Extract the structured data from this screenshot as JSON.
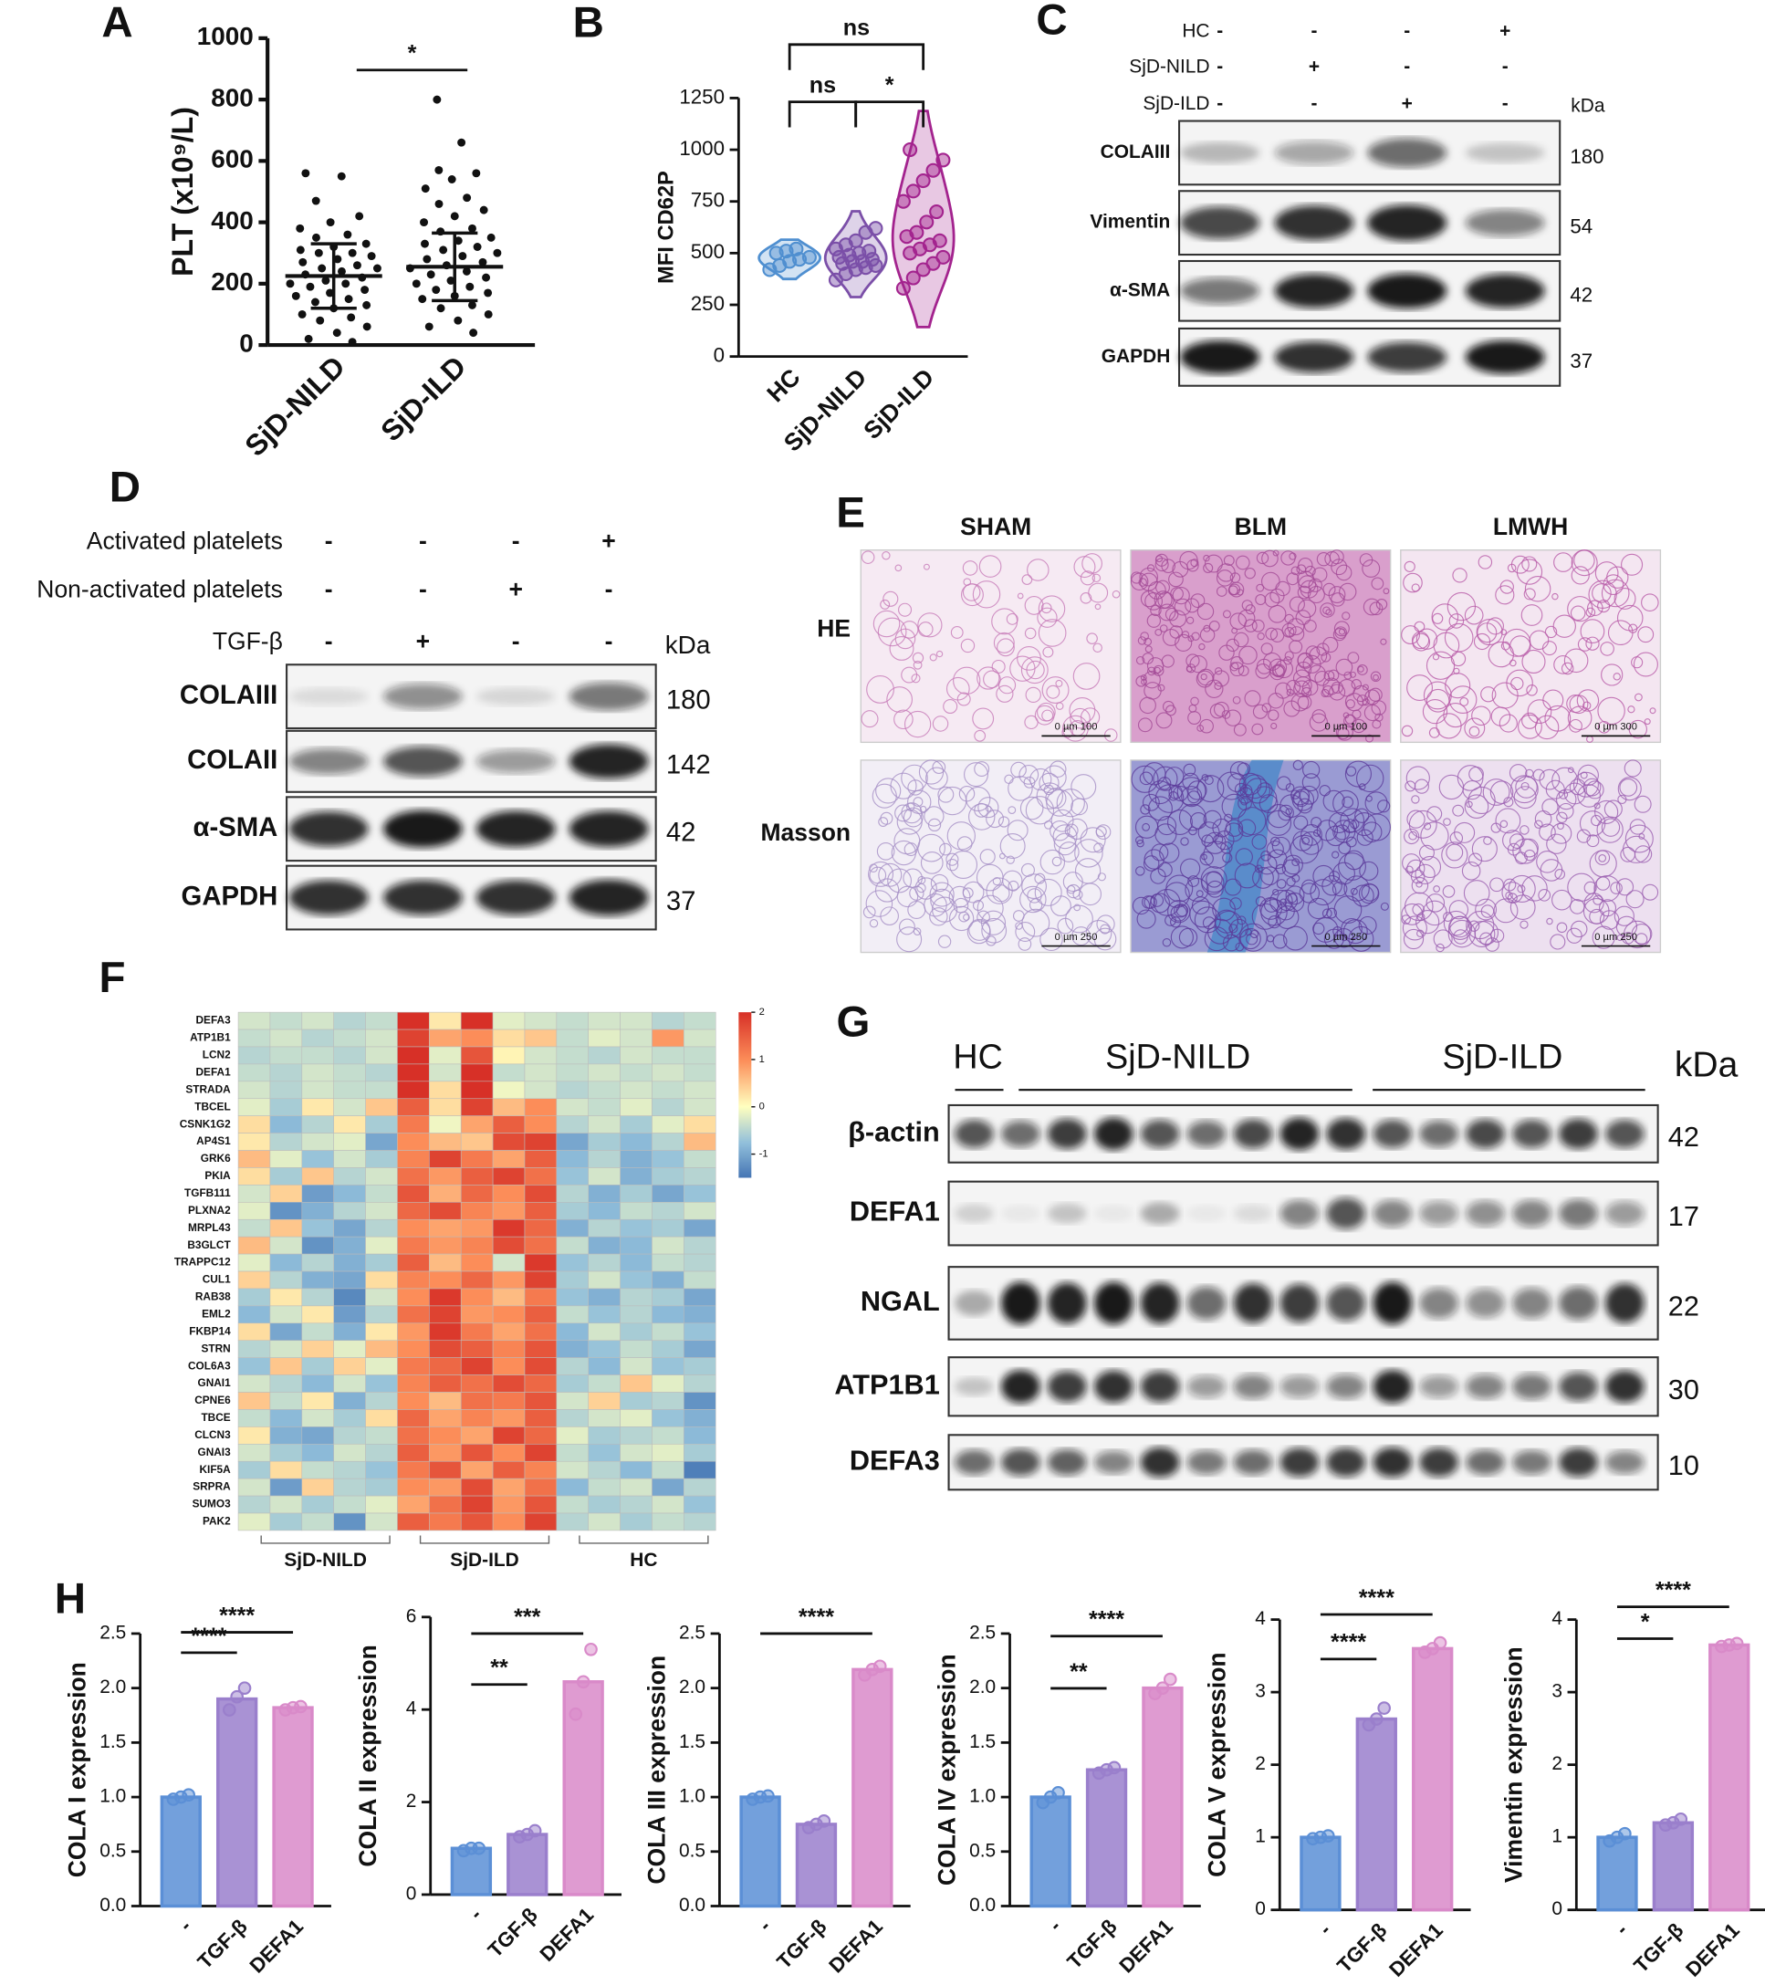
{
  "panel_labels": [
    "A",
    "B",
    "C",
    "D",
    "E",
    "F",
    "G",
    "H"
  ],
  "chart_data": [
    {
      "type": "strip",
      "ylabel": "PLT (x10⁹/L)",
      "categories": [
        "SjD-NILD",
        "SjD-ILD"
      ],
      "values": [
        [
          560,
          550,
          470,
          420,
          400,
          380,
          360,
          350,
          330,
          320,
          310,
          300,
          300,
          290,
          280,
          270,
          260,
          250,
          250,
          240,
          230,
          220,
          210,
          200,
          200,
          190,
          180,
          170,
          160,
          150,
          140,
          130,
          120,
          100,
          90,
          80,
          60,
          40,
          20,
          10
        ],
        [
          800,
          660,
          570,
          560,
          540,
          510,
          480,
          460,
          440,
          420,
          400,
          380,
          370,
          350,
          340,
          330,
          320,
          310,
          300,
          290,
          280,
          270,
          260,
          250,
          240,
          230,
          220,
          210,
          200,
          190,
          180,
          170,
          160,
          150,
          130,
          120,
          100,
          80,
          60,
          40
        ]
      ],
      "mean": [
        225,
        255
      ],
      "sd": [
        105,
        110
      ],
      "color": "#111111",
      "ylim": [
        0,
        1000
      ],
      "yticks": [
        0,
        200,
        400,
        600,
        800,
        1000
      ],
      "annotations": [
        {
          "text": "*",
          "from": 0,
          "to": 1
        }
      ]
    },
    {
      "type": "violin",
      "ylabel": "MFI CD62P",
      "categories": [
        "HC",
        "SjD-NILD",
        "SjD-ILD"
      ],
      "values": [
        [
          420,
          440,
          460,
          470,
          480,
          500,
          510,
          520
        ],
        [
          370,
          400,
          420,
          430,
          440,
          450,
          460,
          460,
          470,
          480,
          490,
          500,
          510,
          520,
          540,
          560,
          600,
          620
        ],
        [
          330,
          380,
          420,
          450,
          480,
          500,
          520,
          540,
          560,
          580,
          600,
          650,
          700,
          750,
          800,
          850,
          900,
          950,
          1000
        ]
      ],
      "colors": [
        "#4f8fd0",
        "#7b4fa8",
        "#a3238e"
      ],
      "ylim": [
        0,
        1250
      ],
      "yticks": [
        0,
        250,
        500,
        750,
        1000,
        1250
      ],
      "annotations": [
        {
          "text": "ns",
          "from": 0,
          "to": 2
        },
        {
          "text": "ns",
          "from": 0,
          "to": 1
        },
        {
          "text": "*",
          "from": 1,
          "to": 2
        }
      ]
    },
    {
      "type": "heatmap",
      "rows": [
        "DEFA3",
        "ATP1B1",
        "LCN2",
        "DEFA1",
        "STRADA",
        "TBCEL",
        "CSNK1G2",
        "AP4S1",
        "GRK6",
        "PKIA",
        "TGFB111",
        "PLXNA2",
        "MRPL43",
        "B3GLCT",
        "TRAPPC12",
        "CUL1",
        "RAB38",
        "EML2",
        "FKBP14",
        "STRN",
        "COL6A3",
        "GNAI1",
        "CPNE6",
        "TBCE",
        "CLCN3",
        "GNAI3",
        "KIF5A",
        "SRPRA",
        "SUMO3",
        "PAK2"
      ],
      "values": [
        [
          -0.3,
          -0.4,
          -0.3,
          -0.5,
          -0.4,
          2,
          0.2,
          2,
          -0.2,
          -0.3,
          -0.4,
          -0.3,
          -0.3,
          -0.5,
          -0.4
        ],
        [
          -0.4,
          -0.3,
          -0.5,
          -0.4,
          -0.3,
          1.8,
          0.8,
          1.0,
          0.3,
          0.5,
          -0.4,
          -0.2,
          -0.3,
          0.9,
          -0.3
        ],
        [
          -0.5,
          -0.4,
          -0.4,
          -0.5,
          -0.3,
          2,
          -0.2,
          1.6,
          0.1,
          -0.3,
          -0.4,
          -0.5,
          -0.3,
          -0.4,
          -0.4
        ],
        [
          -0.4,
          -0.5,
          -0.3,
          -0.4,
          -0.5,
          2,
          -0.3,
          2,
          -0.4,
          -0.3,
          -0.4,
          -0.3,
          -0.4,
          -0.3,
          -0.4
        ],
        [
          -0.3,
          -0.5,
          -0.3,
          -0.4,
          -0.4,
          2,
          0.3,
          2,
          -0.1,
          -0.3,
          -0.5,
          -0.4,
          -0.3,
          -0.4,
          -0.3
        ],
        [
          -0.2,
          -0.6,
          0.2,
          -0.3,
          0.5,
          1.5,
          0.3,
          1.8,
          0.6,
          1.0,
          -0.3,
          -0.4,
          -0.2,
          -0.5,
          -0.3
        ],
        [
          0.3,
          -0.8,
          -0.5,
          0.2,
          -0.6,
          1.2,
          -0.1,
          0.8,
          1.5,
          1.0,
          -0.5,
          -0.3,
          -0.6,
          -0.2,
          0.3
        ],
        [
          0.2,
          -0.5,
          -0.3,
          -0.2,
          -1.0,
          1.0,
          0.6,
          0.5,
          1.7,
          1.8,
          -1.0,
          -0.6,
          -0.8,
          -0.5,
          0.6
        ],
        [
          0.6,
          -0.2,
          -0.7,
          -0.3,
          -0.6,
          1.1,
          1.8,
          1.2,
          0.8,
          1.5,
          -0.8,
          -0.5,
          -0.9,
          -0.7,
          -0.4
        ],
        [
          0.3,
          -0.6,
          0.5,
          -0.5,
          -0.3,
          1.3,
          0.9,
          1.5,
          1.8,
          1.3,
          -0.7,
          -0.3,
          -0.9,
          -0.6,
          -0.5
        ],
        [
          -0.3,
          0.4,
          -1.1,
          -0.8,
          -0.4,
          1.6,
          0.7,
          1.4,
          1.0,
          1.7,
          -0.5,
          -0.9,
          -0.6,
          -1.0,
          -0.7
        ],
        [
          -0.2,
          -1.2,
          -0.9,
          -0.5,
          -0.3,
          1.4,
          1.7,
          1.1,
          0.9,
          1.5,
          -0.6,
          -0.8,
          -0.4,
          -0.5,
          -0.3
        ],
        [
          -0.4,
          0.5,
          -0.7,
          -1.0,
          -0.5,
          1.0,
          0.8,
          0.9,
          1.9,
          1.4,
          -0.9,
          -0.5,
          -0.7,
          -0.6,
          -1.0
        ],
        [
          0.6,
          -0.3,
          -1.2,
          -0.9,
          -0.2,
          1.2,
          0.9,
          1.1,
          1.7,
          1.3,
          -0.4,
          -0.9,
          -0.8,
          -0.3,
          -0.5
        ],
        [
          -0.2,
          -0.8,
          -0.5,
          -0.9,
          -0.6,
          1.5,
          0.6,
          1.0,
          -0.3,
          1.9,
          -0.7,
          -0.5,
          -0.8,
          -0.4,
          -0.5
        ],
        [
          0.4,
          -0.5,
          -0.9,
          -1.0,
          0.3,
          1.1,
          1.0,
          1.4,
          0.9,
          1.8,
          -0.6,
          -0.3,
          -0.7,
          -0.9,
          -0.4
        ],
        [
          -0.6,
          0.2,
          -0.5,
          -1.3,
          -0.3,
          1.0,
          1.9,
          1.0,
          0.6,
          1.2,
          -0.7,
          -0.9,
          -0.5,
          -0.6,
          -1.0
        ],
        [
          -0.8,
          -0.3,
          0.2,
          -1.1,
          -0.5,
          1.3,
          1.8,
          0.9,
          1.0,
          1.5,
          -0.4,
          -0.7,
          -0.5,
          -0.8,
          -0.9
        ],
        [
          0.3,
          -1.0,
          -0.4,
          -0.9,
          0.2,
          0.9,
          1.9,
          1.2,
          0.8,
          1.3,
          -0.8,
          -0.3,
          -0.6,
          -0.4,
          -0.7
        ],
        [
          -0.5,
          -0.3,
          0.4,
          -0.2,
          0.6,
          1.0,
          1.7,
          1.5,
          1.1,
          1.6,
          -0.9,
          -0.7,
          -0.4,
          -0.6,
          -1.0
        ],
        [
          -0.7,
          0.5,
          -0.6,
          0.4,
          -0.2,
          1.2,
          1.4,
          1.8,
          1.0,
          1.7,
          -0.5,
          -0.8,
          -0.3,
          -0.7,
          -0.6
        ],
        [
          -0.3,
          -0.5,
          -0.8,
          -0.3,
          -0.7,
          1.1,
          1.5,
          1.3,
          1.7,
          1.4,
          -0.6,
          -0.4,
          0.5,
          -0.2,
          -0.5
        ],
        [
          0.5,
          -0.4,
          0.2,
          -0.9,
          -0.5,
          1.0,
          0.6,
          1.3,
          1.2,
          1.6,
          -0.3,
          0.4,
          -0.6,
          -0.5,
          -1.2
        ],
        [
          -0.4,
          -0.8,
          -0.3,
          -0.6,
          0.3,
          1.4,
          0.8,
          1.1,
          0.9,
          1.5,
          -0.5,
          -0.3,
          -0.2,
          -0.7,
          -0.9
        ],
        [
          0.2,
          -0.9,
          -1.0,
          -0.5,
          -0.4,
          1.3,
          1.0,
          0.8,
          1.8,
          1.4,
          -0.2,
          -0.6,
          -0.5,
          -0.4,
          -0.8
        ],
        [
          -0.3,
          -0.6,
          -0.8,
          -0.3,
          -0.5,
          1.5,
          0.9,
          1.6,
          1.0,
          1.8,
          -0.4,
          -0.7,
          -0.3,
          -0.2,
          -0.6
        ],
        [
          -0.6,
          0.3,
          -0.4,
          -0.5,
          -0.7,
          1.2,
          1.6,
          0.8,
          1.5,
          1.1,
          -0.3,
          -0.5,
          -0.8,
          -0.4,
          -1.4
        ],
        [
          -0.3,
          -1.1,
          0.4,
          -0.5,
          -0.6,
          1.0,
          0.9,
          1.7,
          0.8,
          1.3,
          -0.8,
          -0.4,
          -0.3,
          -1.0,
          -0.5
        ],
        [
          -0.5,
          -0.3,
          -0.6,
          -0.4,
          -0.2,
          0.8,
          1.3,
          1.8,
          0.9,
          1.6,
          -0.4,
          -0.6,
          -0.5,
          -0.3,
          -0.7
        ],
        [
          -0.2,
          -0.6,
          -0.4,
          -1.2,
          -0.3,
          1.5,
          1.2,
          1.6,
          1.0,
          1.8,
          -0.5,
          -0.3,
          -0.6,
          -0.4,
          -0.5
        ]
      ],
      "column_groups": [
        {
          "name": "SjD-NILD",
          "columns": 5
        },
        {
          "name": "SjD-ILD",
          "columns": 5
        },
        {
          "name": "HC",
          "columns": 5
        }
      ],
      "clim": [
        -1.5,
        2
      ],
      "cticks": [
        2,
        1,
        0,
        -1
      ]
    },
    {
      "type": "bar",
      "ylabel": "COLA I  expression",
      "categories": [
        "-",
        "TGF-β",
        "DEFA1"
      ],
      "values": [
        1.0,
        1.9,
        1.82
      ],
      "points": [
        [
          0.98,
          1.0,
          1.02
        ],
        [
          1.8,
          1.92,
          2.0
        ],
        [
          1.8,
          1.82,
          1.83
        ]
      ],
      "colors": [
        "#5b8fd6",
        "#9a7fcc",
        "#d98ac9"
      ],
      "ylim": [
        0,
        2.5
      ],
      "yticks": [
        {
          "value": 0,
          "label": "0.0"
        },
        0.5,
        {
          "value": 1,
          "label": "1.0"
        },
        1.5,
        {
          "value": 2,
          "label": "2.0"
        },
        2.5
      ],
      "annotations": [
        {
          "text": "****",
          "from": 0,
          "to": 1
        },
        {
          "text": "****",
          "from": 0,
          "to": 2
        }
      ]
    },
    {
      "type": "bar",
      "ylabel": "COLA II  expression",
      "categories": [
        "-",
        "TGF-β",
        "DEFA1"
      ],
      "values": [
        1.0,
        1.3,
        4.6
      ],
      "points": [
        [
          0.95,
          1.0,
          1.0
        ],
        [
          1.25,
          1.3,
          1.38
        ],
        [
          3.9,
          4.6,
          5.3
        ]
      ],
      "colors": [
        "#5b8fd6",
        "#9a7fcc",
        "#d98ac9"
      ],
      "ylim": [
        0,
        6
      ],
      "yticks": [
        0,
        2,
        4,
        6
      ],
      "annotations": [
        {
          "text": "**",
          "from": 0,
          "to": 1
        },
        {
          "text": "***",
          "from": 0,
          "to": 2
        }
      ]
    },
    {
      "type": "bar",
      "ylabel": "COLA III  expression",
      "categories": [
        "-",
        "TGF-β",
        "DEFA1"
      ],
      "values": [
        1.0,
        0.75,
        2.17
      ],
      "points": [
        [
          0.98,
          1.0,
          1.01
        ],
        [
          0.72,
          0.75,
          0.78
        ],
        [
          2.12,
          2.17,
          2.2
        ]
      ],
      "colors": [
        "#5b8fd6",
        "#9a7fcc",
        "#d98ac9"
      ],
      "ylim": [
        0,
        2.5
      ],
      "yticks": [
        {
          "value": 0,
          "label": "0.0"
        },
        0.5,
        {
          "value": 1,
          "label": "1.0"
        },
        1.5,
        {
          "value": 2,
          "label": "2.0"
        },
        2.5
      ],
      "annotations": [
        {
          "text": "****",
          "from": 0,
          "to": 2
        }
      ]
    },
    {
      "type": "bar",
      "ylabel": "COLA IV  expression",
      "categories": [
        "-",
        "TGF-β",
        "DEFA1"
      ],
      "values": [
        1.0,
        1.25,
        2.0
      ],
      "points": [
        [
          0.95,
          1.0,
          1.04
        ],
        [
          1.22,
          1.25,
          1.27
        ],
        [
          1.95,
          2.0,
          2.08
        ]
      ],
      "colors": [
        "#5b8fd6",
        "#9a7fcc",
        "#d98ac9"
      ],
      "ylim": [
        0,
        2.5
      ],
      "yticks": [
        {
          "value": 0,
          "label": "0.0"
        },
        0.5,
        {
          "value": 1,
          "label": "1.0"
        },
        1.5,
        {
          "value": 2,
          "label": "2.0"
        },
        2.5
      ],
      "annotations": [
        {
          "text": "**",
          "from": 0,
          "to": 1
        },
        {
          "text": "****",
          "from": 0,
          "to": 2
        }
      ]
    },
    {
      "type": "bar",
      "ylabel": "COLA V  expression",
      "categories": [
        "-",
        "TGF-β",
        "DEFA1"
      ],
      "values": [
        1.0,
        2.63,
        3.6
      ],
      "points": [
        [
          0.98,
          1.0,
          1.02
        ],
        [
          2.55,
          2.63,
          2.78
        ],
        [
          3.55,
          3.6,
          3.68
        ]
      ],
      "colors": [
        "#5b8fd6",
        "#9a7fcc",
        "#d98ac9"
      ],
      "ylim": [
        0,
        4
      ],
      "yticks": [
        0,
        1,
        2,
        3,
        4
      ],
      "annotations": [
        {
          "text": "****",
          "from": 0,
          "to": 1
        },
        {
          "text": "****",
          "from": 0,
          "to": 2
        }
      ]
    },
    {
      "type": "bar",
      "ylabel": "Vimentin expression",
      "categories": [
        "-",
        "TGF-β",
        "DEFA1"
      ],
      "values": [
        1.0,
        1.2,
        3.65
      ],
      "points": [
        [
          0.95,
          1.0,
          1.05
        ],
        [
          1.17,
          1.2,
          1.25
        ],
        [
          3.63,
          3.65,
          3.67
        ]
      ],
      "colors": [
        "#5b8fd6",
        "#9a7fcc",
        "#d98ac9"
      ],
      "ylim": [
        0,
        4
      ],
      "yticks": [
        0,
        1,
        2,
        3,
        4
      ],
      "annotations": [
        {
          "text": "*",
          "from": 0,
          "to": 1
        },
        {
          "text": "****",
          "from": 0,
          "to": 2
        }
      ]
    }
  ],
  "blot_c": {
    "conditions": [
      {
        "label": "HC",
        "signs": [
          "-",
          "-",
          "-",
          "+"
        ]
      },
      {
        "label": "SjD-NILD",
        "signs": [
          "-",
          "+",
          "-",
          "-"
        ]
      },
      {
        "label": "SjD-ILD",
        "signs": [
          "-",
          "-",
          "+",
          "-"
        ]
      }
    ],
    "unit": "kDa",
    "bands": [
      {
        "name": "COLAIII",
        "kda": "180"
      },
      {
        "name": "Vimentin",
        "kda": "54"
      },
      {
        "name": "α-SMA",
        "kda": "42"
      },
      {
        "name": "GAPDH",
        "kda": "37"
      }
    ]
  },
  "blot_d": {
    "conditions": [
      {
        "label": "Activated platelets",
        "signs": [
          "-",
          "-",
          "-",
          "+"
        ]
      },
      {
        "label": "Non-activated platelets",
        "signs": [
          "-",
          "-",
          "+",
          "-"
        ]
      },
      {
        "label": "TGF-β",
        "signs": [
          "-",
          "+",
          "-",
          "-"
        ]
      }
    ],
    "unit": "kDa",
    "bands": [
      {
        "name": "COLAIII",
        "kda": "180"
      },
      {
        "name": "COLAII",
        "kda": "142"
      },
      {
        "name": "α-SMA",
        "kda": "42"
      },
      {
        "name": "GAPDH",
        "kda": "37"
      }
    ]
  },
  "histology": {
    "columns": [
      "SHAM",
      "BLM",
      "LMWH"
    ],
    "rows": [
      {
        "label": "HE",
        "scales": [
          "0 µm 100",
          "0 µm 100",
          "0 µm 300"
        ]
      },
      {
        "label": "Masson",
        "scales": [
          "0 µm 250",
          "0 µm 250",
          "0 µm 250"
        ]
      }
    ]
  },
  "blot_g": {
    "lane_groups": [
      "HC",
      "SjD-NILD",
      "SjD-ILD"
    ],
    "unit": "kDa",
    "bands": [
      {
        "name": "β-actin",
        "kda": "42"
      },
      {
        "name": "DEFA1",
        "kda": "17"
      },
      {
        "name": "NGAL",
        "kda": "22"
      },
      {
        "name": "ATP1B1",
        "kda": "30"
      },
      {
        "name": "DEFA3",
        "kda": "10"
      }
    ]
  }
}
